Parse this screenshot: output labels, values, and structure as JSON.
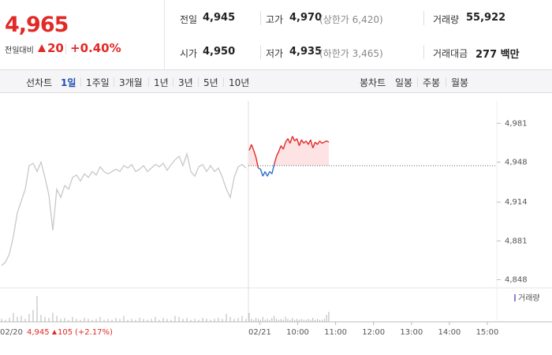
{
  "summary": {
    "price": "4,965",
    "change_label": "전일대비",
    "change": "20",
    "change_pct": "+0.40%"
  },
  "stats": [
    [
      {
        "label": "전일",
        "value": "4,945"
      },
      {
        "label": "고가",
        "value": "4,970",
        "note": "(상한가 6,420)"
      },
      {
        "label": "거래량",
        "value": "55,922"
      }
    ],
    [
      {
        "label": "시가",
        "value": "4,950"
      },
      {
        "label": "저가",
        "value": "4,935",
        "note": "(하한가 3,465)"
      },
      {
        "label": "거래대금",
        "value": "277 백만"
      }
    ]
  ],
  "tabs": {
    "line_label": "선차트",
    "line": [
      "1일",
      "1주일",
      "3개월",
      "1년",
      "3년",
      "5년",
      "10년"
    ],
    "candle_label": "봉차트",
    "candle": [
      "일봉",
      "주봉",
      "월봉"
    ]
  },
  "previous_day": {
    "close": "4,945",
    "change": "105",
    "change_pct": "(+2.17%)"
  },
  "chart_data": {
    "type": "line",
    "ylim": [
      4843,
      5000
    ],
    "yticks": [
      {
        "value": 4981,
        "label": "4,981"
      },
      {
        "value": 4948,
        "label": "4,948"
      },
      {
        "value": 4914,
        "label": "4,914"
      },
      {
        "value": 4881,
        "label": "4,881"
      },
      {
        "value": 4848,
        "label": "4,848"
      }
    ],
    "xlim": [
      8.7,
      15.25
    ],
    "xticks": [
      {
        "value": 9,
        "label": "02/21"
      },
      {
        "value": 10,
        "label": "10:00"
      },
      {
        "value": 11,
        "label": "11:00"
      },
      {
        "value": 12,
        "label": "12:00"
      },
      {
        "value": 13,
        "label": "13:00"
      },
      {
        "value": 14,
        "label": "14:00"
      },
      {
        "value": 15,
        "label": "15:00"
      }
    ],
    "previous_label": "02/20",
    "baseline": 4945,
    "y2lim": [
      0,
      30000
    ],
    "volume_label": "거래량",
    "volume_color": "#b5b5b5",
    "series": [
      {
        "color": "#c8c8c8",
        "values": [
          4860,
          4863,
          4870,
          4885,
          4905,
          4915,
          4925,
          4945,
          4947,
          4940,
          4948,
          4935,
          4920,
          4890,
          4925,
          4918,
          4928,
          4925,
          4935,
          4937,
          4932,
          4938,
          4935,
          4940,
          4937,
          4944,
          4940,
          4938,
          4940,
          4942,
          4940,
          4945,
          4943,
          4946,
          4940,
          4942,
          4945,
          4940,
          4943,
          4946,
          4944,
          4947,
          4941,
          4946,
          4950,
          4953,
          4945,
          4955,
          4940,
          4936,
          4944,
          4946,
          4940,
          4945,
          4940,
          4943,
          4935,
          4925,
          4918,
          4935,
          4944,
          4946,
          4943
        ],
        "volume": [
          3000,
          2000,
          4000,
          9000,
          5000,
          6000,
          3000,
          8000,
          12000,
          26000,
          7000,
          5000,
          4000,
          9000,
          6000,
          3000,
          4000,
          2000,
          5000,
          3000,
          2000,
          4000,
          3000,
          2000,
          3000,
          5000,
          2000,
          3000,
          2000,
          4000,
          3000,
          6000,
          2000,
          3000,
          2000,
          4000,
          3000,
          2000,
          3000,
          5000,
          2000,
          4000,
          3000,
          2000,
          6000,
          5000,
          3000,
          4000,
          2000,
          3000,
          2000,
          4000,
          3000,
          2000,
          3000,
          4000,
          3000,
          8000,
          5000,
          3000,
          4000,
          6000,
          3000
        ]
      },
      {
        "color": "#e22926",
        "color_down": "#2f6ecf",
        "fill": "#fde3e3",
        "x": [
          8.72,
          8.78,
          8.84,
          8.9,
          8.96,
          9.02,
          9.08,
          9.14,
          9.2,
          9.26,
          9.32,
          9.38,
          9.44,
          9.5,
          9.56,
          9.62,
          9.68,
          9.74,
          9.8,
          9.86,
          9.92,
          9.98,
          10.04,
          10.1,
          10.16,
          10.22,
          10.28,
          10.34,
          10.4,
          10.46,
          10.52,
          10.58,
          10.64,
          10.7,
          10.76,
          10.82
        ],
        "values": [
          4958,
          4963,
          4958,
          4952,
          4943,
          4942,
          4936,
          4940,
          4936,
          4940,
          4938,
          4946,
          4953,
          4957,
          4962,
          4959,
          4965,
          4968,
          4964,
          4970,
          4966,
          4968,
          4962,
          4967,
          4964,
          4966,
          4963,
          4967,
          4960,
          4965,
          4963,
          4966,
          4964,
          4965,
          4966,
          4965
        ],
        "volume": [
          9000,
          3000,
          2000,
          4000,
          3000,
          2000,
          5000,
          2000,
          3000,
          2000,
          4000,
          6000,
          3000,
          2000,
          3000,
          2000,
          5000,
          3000,
          2000,
          4000,
          2000,
          3000,
          2000,
          3000,
          2000,
          2000,
          3000,
          2000,
          4000,
          2000,
          3000,
          2000,
          2000,
          3000,
          7000,
          10000
        ]
      }
    ]
  }
}
